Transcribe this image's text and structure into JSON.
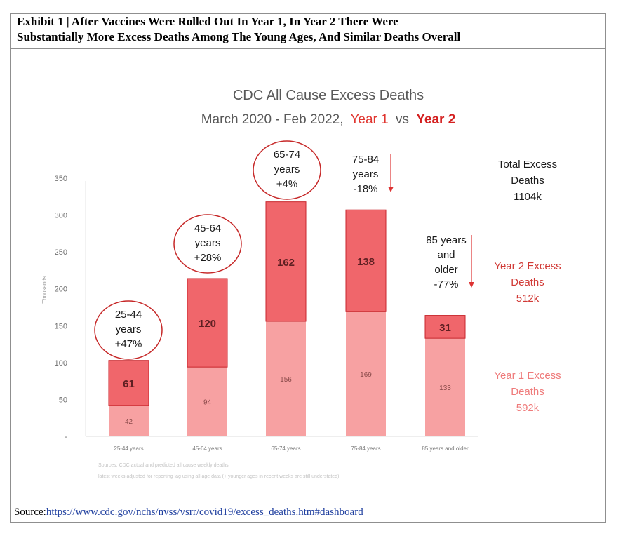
{
  "exhibit": {
    "title_line1": "Exhibit 1 | After Vaccines Were Rolled Out In Year 1, In Year 2 There Were",
    "title_line2": "Substantially More Excess Deaths Among The Young Ages, And Similar Deaths Overall"
  },
  "source": {
    "label": "Source:",
    "url": "https://www.cdc.gov/nchs/nvss/vsrr/covid19/excess_deaths.htm#dashboard"
  },
  "colors": {
    "year1": "#f7a1a2",
    "year2": "#f0666b",
    "year2_border": "#c9262c",
    "title_red": "#e0352f",
    "circle": "#c62828"
  },
  "chart_data": {
    "type": "bar",
    "stacked": true,
    "title": "CDC All Cause Excess Deaths",
    "subtitle_prefix": "March 2020 - Feb 2022,",
    "subtitle_year1": "Year 1",
    "subtitle_vs": "vs",
    "subtitle_year2": "Year 2",
    "ylabel": "Thousands",
    "ylim": [
      0,
      350
    ],
    "yticks": [
      {
        "value": 0,
        "label": "-"
      },
      {
        "value": 50,
        "label": "50"
      },
      {
        "value": 100,
        "label": "100"
      },
      {
        "value": 150,
        "label": "150"
      },
      {
        "value": 200,
        "label": "200"
      },
      {
        "value": 250,
        "label": "250"
      },
      {
        "value": 300,
        "label": "300"
      },
      {
        "value": 350,
        "label": "350"
      }
    ],
    "categories": [
      "25-44 years",
      "45-64 years",
      "65-74 years",
      "75-84 years",
      "85 years and older"
    ],
    "series": [
      {
        "name": "Year 1 Excess Deaths",
        "values": [
          42,
          94,
          156,
          169,
          133
        ]
      },
      {
        "name": "Year 2 Excess Deaths",
        "values": [
          61,
          120,
          162,
          138,
          31
        ]
      }
    ],
    "annotations": [
      {
        "lines": [
          "25-44",
          "years",
          "+47%"
        ],
        "circled": true,
        "arrow": false
      },
      {
        "lines": [
          "45-64",
          "years",
          "+28%"
        ],
        "circled": true,
        "arrow": false
      },
      {
        "lines": [
          "65-74",
          "years",
          "+4%"
        ],
        "circled": true,
        "arrow": false
      },
      {
        "lines": [
          "75-84",
          "years",
          "-18%"
        ],
        "circled": false,
        "arrow": true
      },
      {
        "lines": [
          "85 years",
          "and",
          "older",
          "-77%"
        ],
        "circled": false,
        "arrow": true
      }
    ],
    "totals": {
      "total_lines": [
        "Total Excess",
        "Deaths",
        "1104k"
      ],
      "year2_lines": [
        "Year 2 Excess",
        "Deaths",
        "512k"
      ],
      "year1_lines": [
        "Year 1 Excess",
        "Deaths",
        "592k"
      ]
    },
    "footnotes": [
      "Sources: CDC actual and predicted all cause weekly deaths",
      "latest weeks adjusted for reporting lag using all age data (+ younger ages in recent weeks are still understated)"
    ]
  }
}
